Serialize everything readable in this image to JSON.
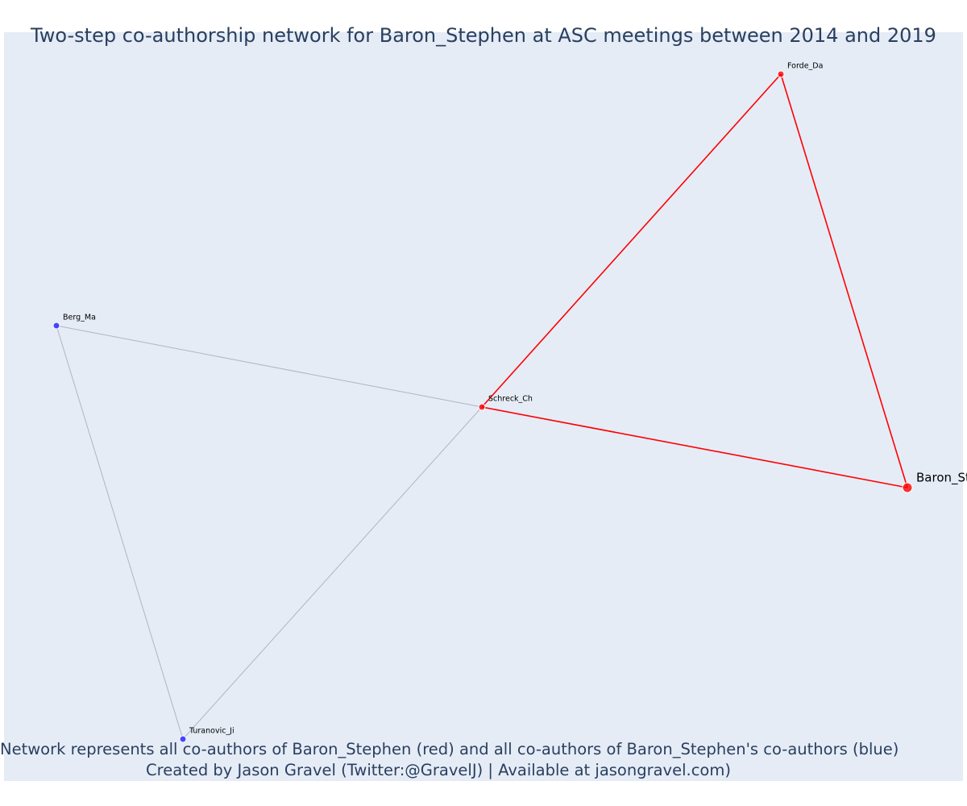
{
  "title": "Two-step co-authorship network for Baron_Stephen at ASC meetings between 2014 and 2019",
  "caption": {
    "line1": "Network represents all co-authors of Baron_Stephen (red) and all co-authors of Baron_Stephen's co-authors (blue)",
    "line2": "Created by Jason Gravel (Twitter:@GravelJ) | Available at jasongravel.com)"
  },
  "colors": {
    "background": "#e5ecf6",
    "first_degree": "#ff0000",
    "second_degree": "#1f1fff",
    "second_edge": "#b0b4c4",
    "text": "#2a3f5f"
  },
  "nodes": [
    {
      "id": "Baron_Stephen",
      "label": "Baron_Stephen",
      "group": "focal"
    },
    {
      "id": "Forde_Da",
      "label": "Forde_Da",
      "group": "coauthor"
    },
    {
      "id": "Schreck_Ch",
      "label": "Schreck_Ch",
      "group": "coauthor"
    },
    {
      "id": "Berg_Ma",
      "label": "Berg_Ma",
      "group": "second"
    },
    {
      "id": "Turanovic_Ji",
      "label": "Turanovic_Ji",
      "group": "second"
    }
  ],
  "edges": [
    {
      "source": "Forde_Da",
      "target": "Schreck_Ch",
      "kind": "first"
    },
    {
      "source": "Forde_Da",
      "target": "Baron_Stephen",
      "kind": "first"
    },
    {
      "source": "Schreck_Ch",
      "target": "Baron_Stephen",
      "kind": "first"
    },
    {
      "source": "Berg_Ma",
      "target": "Schreck_Ch",
      "kind": "second"
    },
    {
      "source": "Berg_Ma",
      "target": "Turanovic_Ji",
      "kind": "second"
    },
    {
      "source": "Turanovic_Ji",
      "target": "Schreck_Ch",
      "kind": "second"
    }
  ]
}
